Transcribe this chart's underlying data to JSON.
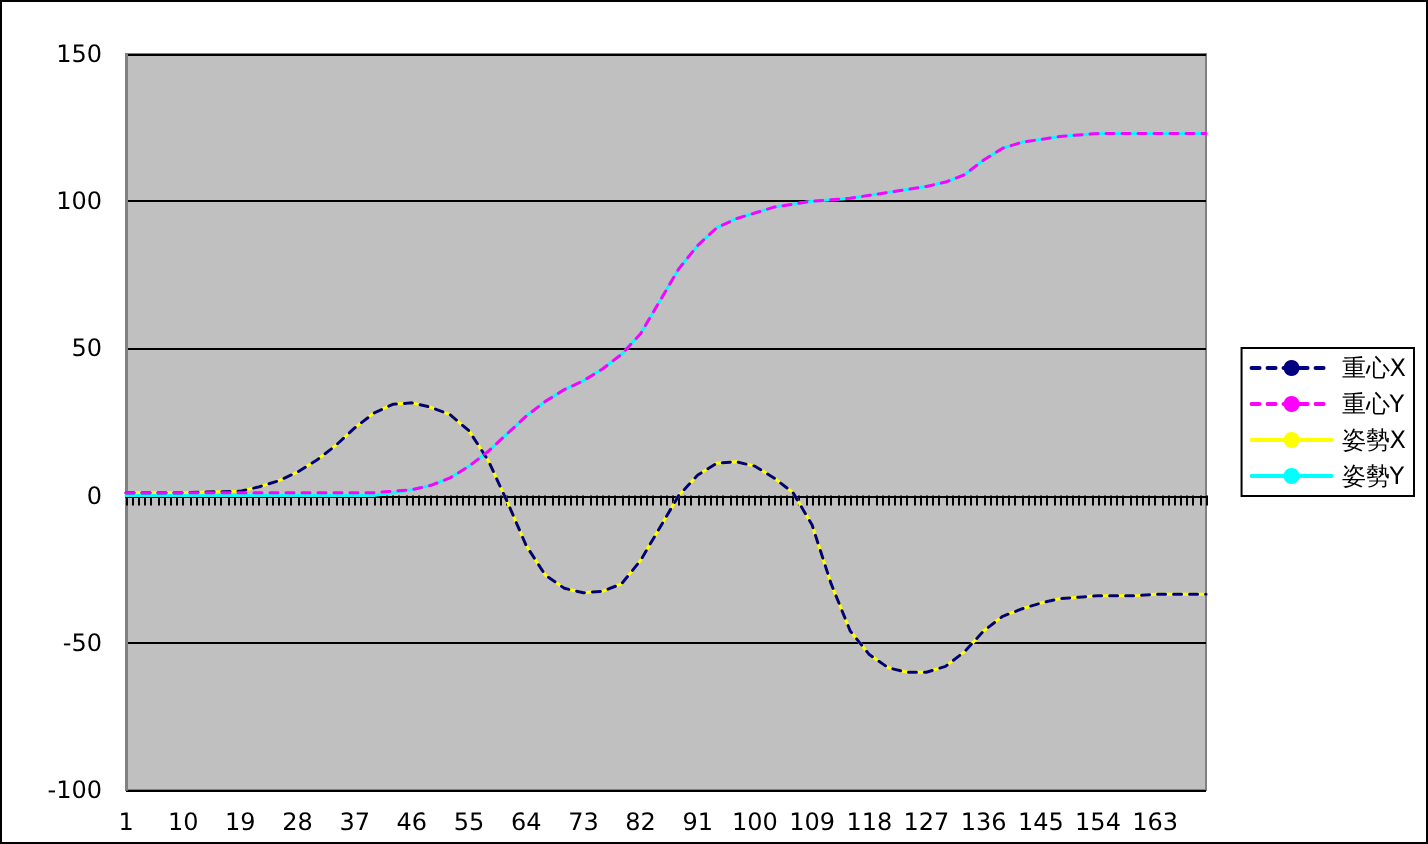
{
  "chart_data": {
    "type": "line",
    "x": [
      1,
      10,
      19,
      22,
      25,
      28,
      31,
      34,
      37,
      40,
      43,
      46,
      49,
      52,
      55,
      58,
      61,
      64,
      67,
      70,
      73,
      76,
      79,
      82,
      85,
      88,
      91,
      94,
      97,
      100,
      103,
      106,
      109,
      112,
      115,
      118,
      121,
      124,
      127,
      130,
      133,
      136,
      139,
      142,
      145,
      148,
      151,
      154,
      157,
      160,
      163,
      166,
      171
    ],
    "series": [
      {
        "name": "重心X",
        "color": "#000080",
        "line_style": "dashed",
        "values": [
          1,
          1,
          1.5,
          3,
          5,
          8,
          12,
          17,
          23,
          28,
          31,
          31.5,
          30,
          27.5,
          22,
          12,
          -2,
          -17,
          -27,
          -31.5,
          -33,
          -32.5,
          -30,
          -22,
          -11,
          0,
          7,
          11,
          11.5,
          10,
          6,
          1,
          -10,
          -30,
          -46,
          -54,
          -58.5,
          -60,
          -60,
          -58,
          -53,
          -46,
          -41,
          -38.5,
          -36.5,
          -35,
          -34.5,
          -34,
          -34,
          -34,
          -33.5,
          -33.5,
          -33.5
        ]
      },
      {
        "name": "重心Y",
        "color": "#ff00ff",
        "line_style": "dashed",
        "values": [
          1,
          1,
          1,
          1,
          1,
          1,
          1,
          1,
          1,
          1,
          1.5,
          2,
          3.5,
          6,
          10,
          15,
          21,
          27,
          32,
          36,
          39,
          43,
          48,
          55,
          66,
          77,
          85,
          91,
          94,
          96,
          98,
          99,
          100,
          100.5,
          101,
          102,
          103,
          104,
          105,
          106.5,
          109,
          114,
          118,
          120,
          121,
          122,
          122.5,
          123,
          123,
          123,
          123,
          123,
          123
        ]
      },
      {
        "name": "姿勢X",
        "color": "#ffff00",
        "line_style": "solid",
        "values": [
          1,
          1,
          1.5,
          3,
          5,
          8,
          12,
          17,
          23,
          28,
          31,
          31.5,
          30,
          27.5,
          22,
          12,
          -2,
          -17,
          -27,
          -31.5,
          -33,
          -32.5,
          -30,
          -22,
          -11,
          0,
          7,
          11,
          11.5,
          10,
          6,
          1,
          -10,
          -30,
          -46,
          -54,
          -58.5,
          -60,
          -60,
          -58,
          -53,
          -46,
          -41,
          -38.5,
          -36.5,
          -35,
          -34.5,
          -34,
          -34,
          -34,
          -33.5,
          -33.5,
          -33.5
        ]
      },
      {
        "name": "姿勢Y",
        "color": "#00ffff",
        "line_style": "solid",
        "values": [
          0,
          0,
          0,
          0,
          0,
          0,
          0,
          0,
          0,
          0,
          1,
          2,
          3.5,
          6,
          10,
          15,
          21,
          27,
          32,
          36,
          39,
          43,
          48,
          55,
          66,
          77,
          85,
          91,
          94,
          96,
          98,
          99,
          100,
          100.5,
          101,
          102,
          103,
          104,
          105,
          106.5,
          109,
          114,
          118,
          120,
          121,
          122,
          122.5,
          123,
          123,
          123,
          123,
          123,
          123
        ]
      }
    ],
    "xlim": [
      1,
      171
    ],
    "xticks": [
      1,
      10,
      19,
      28,
      37,
      46,
      55,
      64,
      73,
      82,
      91,
      100,
      109,
      118,
      127,
      136,
      145,
      154,
      163
    ],
    "ylim": [
      -100,
      150
    ],
    "yticks": [
      -100,
      -50,
      0,
      50,
      100,
      150
    ],
    "grid": "y",
    "legend": "right",
    "marker": "none"
  }
}
